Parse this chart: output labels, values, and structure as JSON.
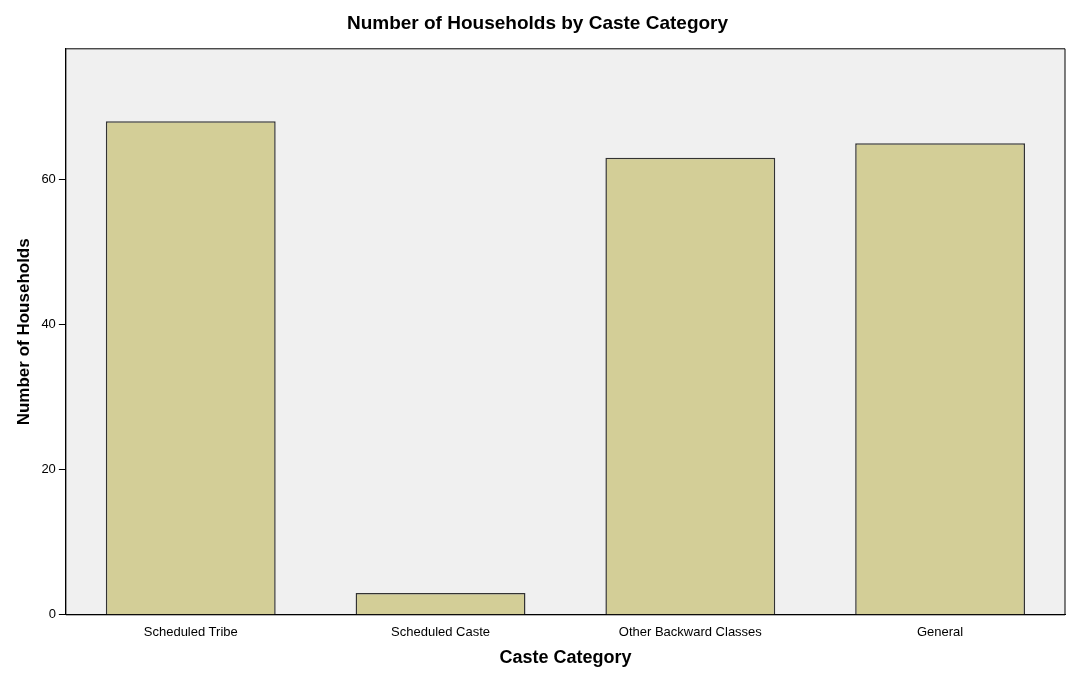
{
  "chart_data": {
    "type": "bar",
    "title": "Number of Households by Caste Category",
    "xlabel": "Caste Category",
    "ylabel": "Number of Households",
    "categories": [
      "Scheduled Tribe",
      "Scheduled Caste",
      "Other Backward Classes",
      "General"
    ],
    "values": [
      68,
      3,
      63,
      65
    ],
    "color": "#d3ce97",
    "ylim": [
      0,
      78
    ],
    "yticks": [
      0,
      20,
      40,
      60
    ],
    "grid": false,
    "legend": false
  }
}
